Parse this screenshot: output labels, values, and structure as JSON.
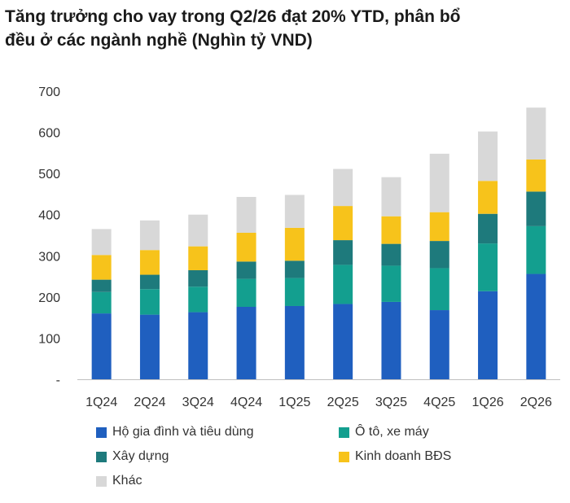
{
  "title_lines": [
    "Tăng trưởng cho vay trong Q2/26 đạt 20% YTD, phân bổ",
    "đều ở các ngành nghề (Nghìn tỷ VND)"
  ],
  "chart_data": {
    "type": "bar",
    "stacked": true,
    "title": "Tăng trưởng cho vay trong Q2/26 đạt 20% YTD, phân bổ đều ở các ngành nghề (Nghìn tỷ VND)",
    "categories": [
      "1Q24",
      "2Q24",
      "3Q24",
      "4Q24",
      "1Q25",
      "2Q25",
      "3Q25",
      "4Q25",
      "1Q26",
      "2Q26"
    ],
    "series": [
      {
        "name": "Hộ gia đình và tiêu dùng",
        "color": "#1f5fbf",
        "values": [
          160,
          157,
          163,
          176,
          178,
          183,
          188,
          168,
          214,
          256
        ]
      },
      {
        "name": "Ô tô, xe máy",
        "color": "#139f8f",
        "values": [
          52,
          62,
          62,
          68,
          68,
          95,
          88,
          102,
          116,
          116
        ]
      },
      {
        "name": "Xây dựng",
        "color": "#1e7a7c",
        "values": [
          30,
          35,
          40,
          42,
          42,
          60,
          53,
          66,
          72,
          84
        ]
      },
      {
        "name": "Kinh doanh BĐS",
        "color": "#f7c31b",
        "values": [
          60,
          60,
          58,
          70,
          80,
          83,
          67,
          70,
          80,
          78
        ]
      },
      {
        "name": "Khác",
        "color": "#d8d8d8",
        "values": [
          63,
          72,
          77,
          87,
          80,
          90,
          95,
          142,
          120,
          126
        ]
      }
    ],
    "ylim": [
      0,
      700
    ],
    "yticks": [
      "-",
      "100",
      "200",
      "300",
      "400",
      "500",
      "600",
      "700"
    ],
    "ytick_values": [
      0,
      100,
      200,
      300,
      400,
      500,
      600,
      700
    ],
    "xlabel": "",
    "ylabel": "",
    "grid": false,
    "legend_position": "bottom"
  }
}
